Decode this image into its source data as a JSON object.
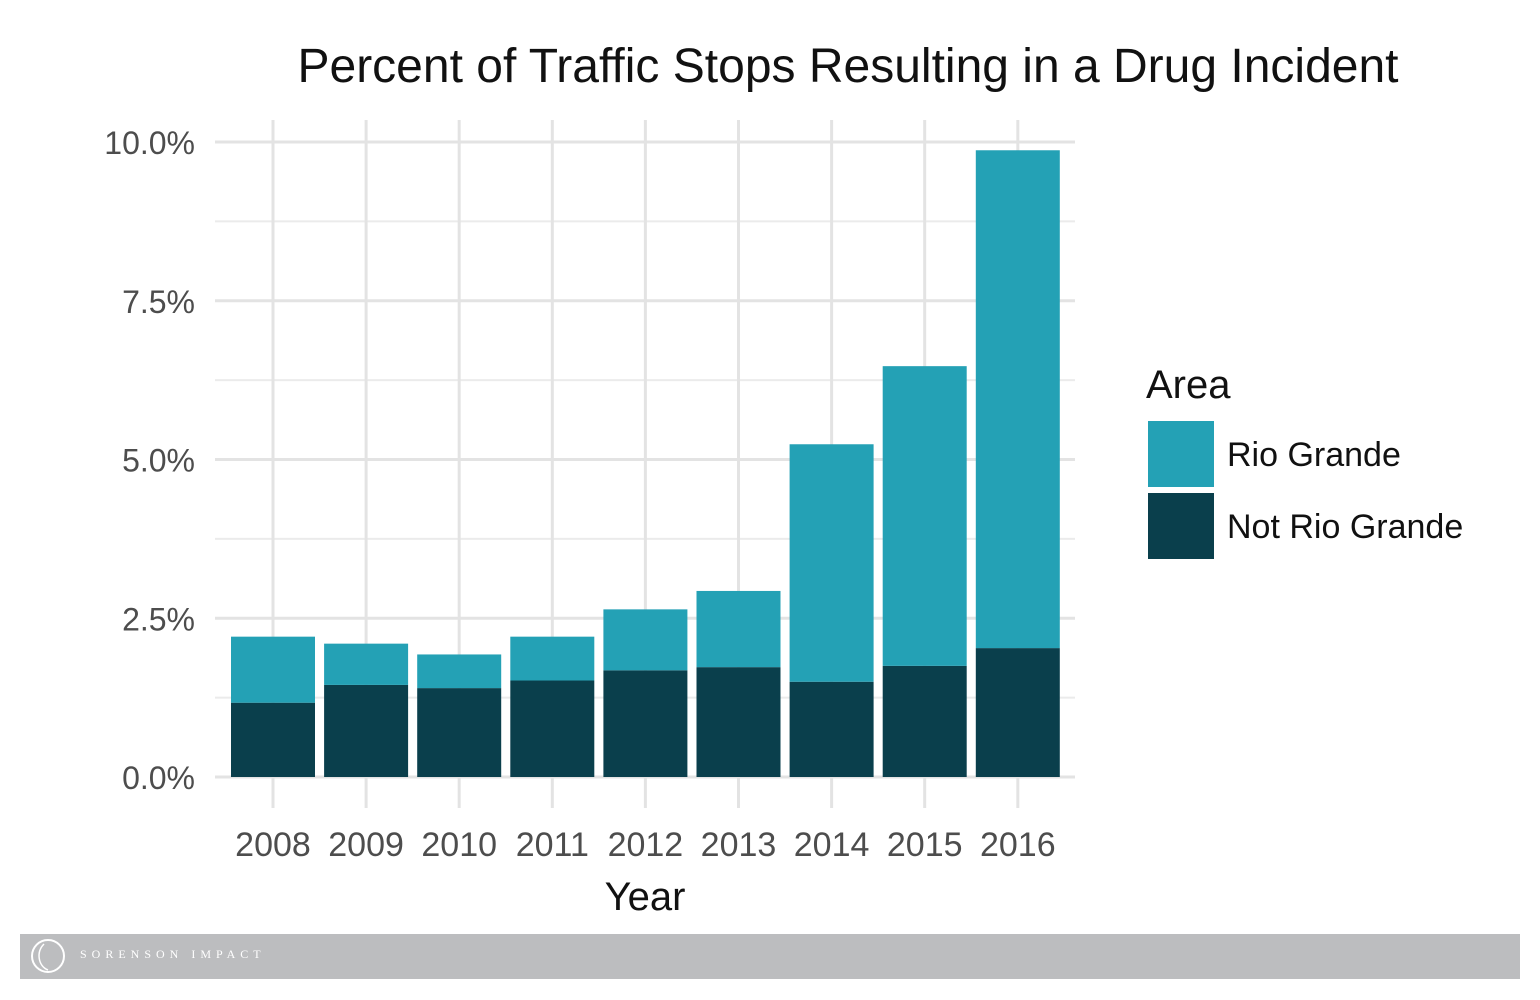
{
  "chart_data": {
    "type": "bar",
    "stacked": true,
    "title": "Percent of Traffic Stops Resulting in a Drug Incident",
    "xlabel": "Year",
    "ylabel": "",
    "categories": [
      "2008",
      "2009",
      "2010",
      "2011",
      "2012",
      "2013",
      "2014",
      "2015",
      "2016"
    ],
    "ylim": [
      0,
      10
    ],
    "yticks": [
      0,
      2.5,
      5,
      7.5,
      10
    ],
    "ytick_labels": [
      "0.0%",
      "2.5%",
      "5.0%",
      "7.5%",
      "10.0%"
    ],
    "grid": true,
    "legend_title": "Area",
    "legend_position": "right",
    "series": [
      {
        "name": "Not Rio Grande",
        "color": "#0a3f4c",
        "values": [
          1.17,
          1.45,
          1.4,
          1.52,
          1.68,
          1.73,
          1.5,
          1.75,
          2.03
        ]
      },
      {
        "name": "Rio Grande",
        "color": "#24a1b5",
        "values": [
          1.04,
          0.65,
          0.53,
          0.69,
          0.96,
          1.2,
          3.74,
          4.72,
          7.84
        ]
      }
    ]
  },
  "footer": {
    "brand": "SORENSON IMPACT",
    "logo_icon": "sorenson-circle-logo-icon",
    "background": "#bcbdbf"
  }
}
